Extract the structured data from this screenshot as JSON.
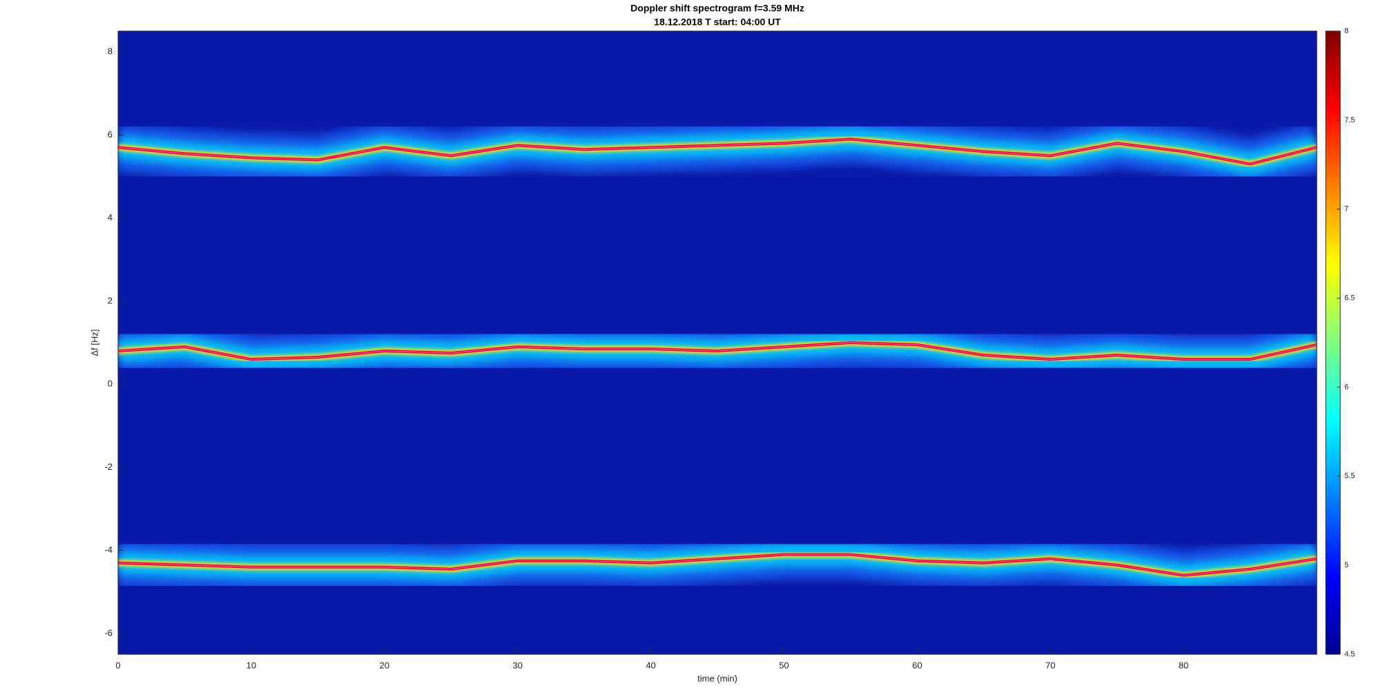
{
  "chart_data": {
    "type": "spectrogram",
    "title": "Doppler shift spectrogram f=3.59 MHz",
    "subtitle": "18.12.2018   T start: 04:00 UT",
    "xlabel": "time (min)",
    "ylabel": "Δf [Hz]",
    "x": [
      0,
      5,
      10,
      15,
      20,
      25,
      30,
      35,
      40,
      45,
      50,
      55,
      60,
      65,
      70,
      75,
      80,
      85,
      90
    ],
    "series": [
      {
        "color": "#ff0000",
        "values": [
          5.7,
          5.55,
          5.45,
          5.4,
          5.7,
          5.5,
          5.75,
          5.65,
          5.7,
          5.75,
          5.8,
          5.9,
          5.75,
          5.6,
          5.5,
          5.8,
          5.6,
          5.3,
          5.7
        ]
      },
      {
        "color": "#ff0000",
        "values": [
          0.8,
          0.9,
          0.6,
          0.65,
          0.8,
          0.75,
          0.9,
          0.85,
          0.85,
          0.8,
          0.9,
          1.0,
          0.95,
          0.7,
          0.6,
          0.7,
          0.6,
          0.6,
          0.95
        ]
      },
      {
        "color": "#ff0000",
        "values": [
          -4.3,
          -4.35,
          -4.4,
          -4.4,
          -4.4,
          -4.45,
          -4.25,
          -4.25,
          -4.3,
          -4.2,
          -4.1,
          -4.1,
          -4.25,
          -4.3,
          -4.2,
          -4.35,
          -4.6,
          -4.45,
          -4.2
        ]
      }
    ],
    "xlim": [
      0,
      90
    ],
    "xticks": [
      0,
      10,
      20,
      30,
      40,
      50,
      60,
      70,
      80
    ],
    "ylim": [
      -6.5,
      8.5
    ],
    "yticks": [
      -6,
      -4,
      -2,
      0,
      2,
      4,
      6,
      8
    ],
    "colormap": "jet",
    "clim": [
      4.5,
      8
    ],
    "cticks": [
      4.5,
      5,
      5.5,
      6,
      6.5,
      7,
      7.5,
      8
    ]
  }
}
